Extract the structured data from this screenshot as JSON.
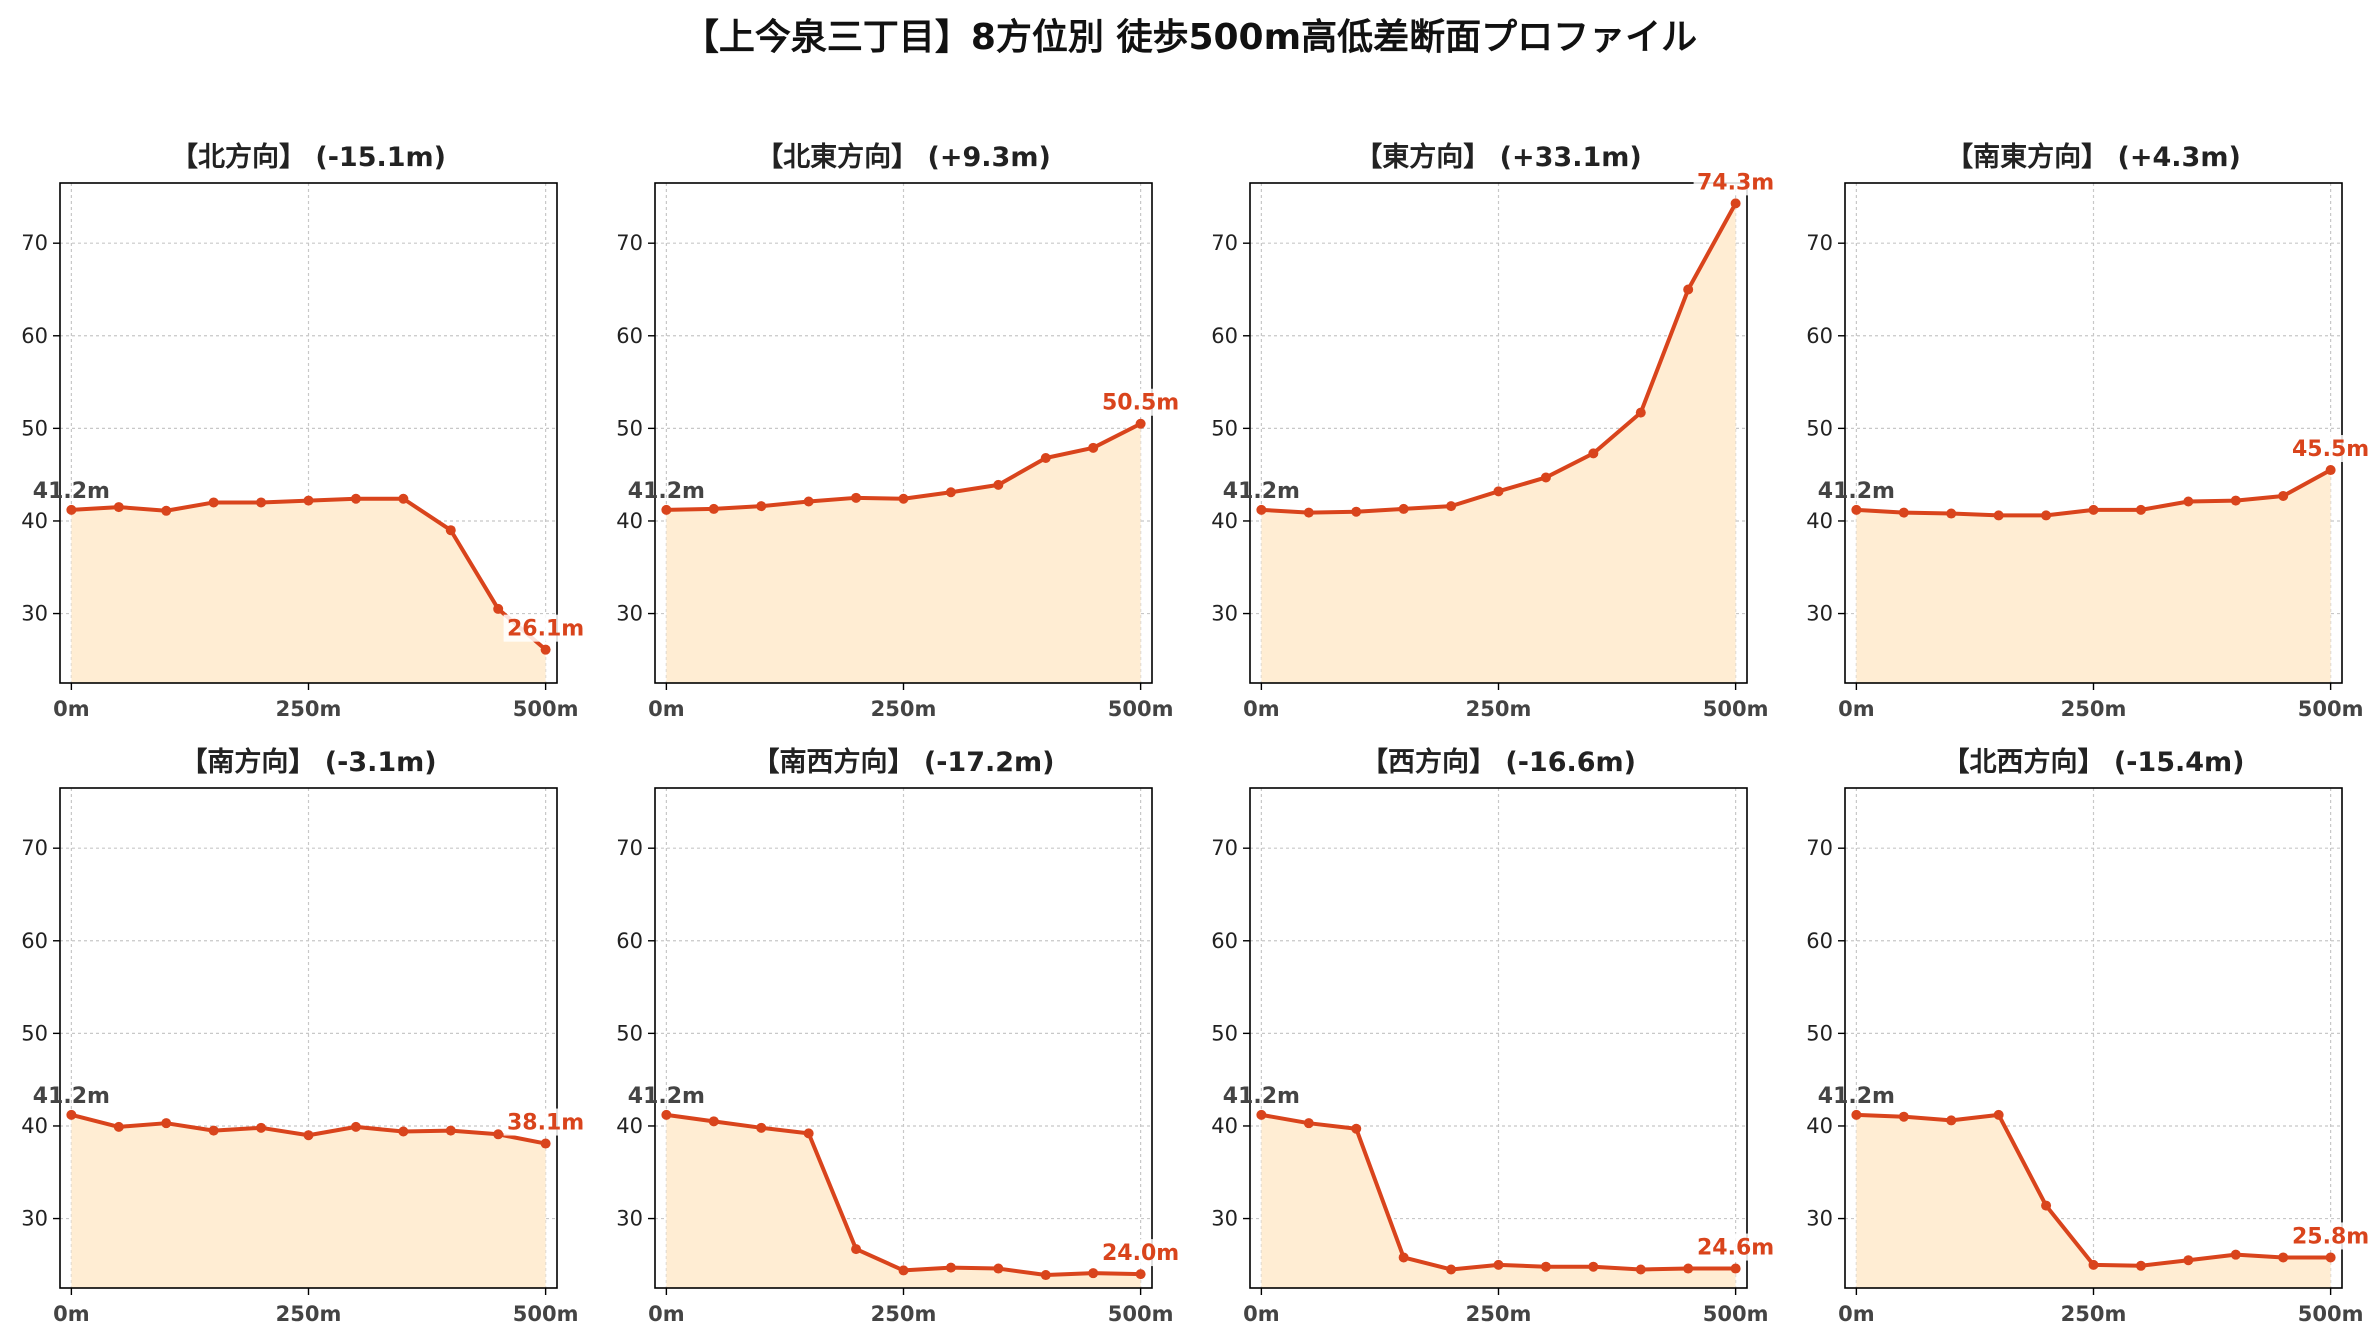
{
  "title": "【上今泉三丁目】8方位別 徒歩500m高低差断面プロファイル",
  "colors": {
    "line": "#d9441c",
    "fill": "#ffedd3",
    "grid": "#c8c8c8",
    "axis": "#000000",
    "start_label": "#444444"
  },
  "chart_data": [
    {
      "type": "area",
      "title": "【北方向】 (-15.1m)",
      "x": [
        0,
        50,
        100,
        150,
        200,
        250,
        300,
        350,
        400,
        450,
        500
      ],
      "values": [
        41.2,
        41.5,
        41.1,
        42.0,
        42.0,
        42.2,
        42.4,
        42.4,
        39.0,
        30.5,
        26.1
      ],
      "start_label": "41.2m",
      "end_label": "26.1m",
      "xticks": [
        0,
        250,
        500
      ],
      "xtick_labels": [
        "0m",
        "250m",
        "500m"
      ],
      "yticks": [
        30,
        40,
        50,
        60,
        70
      ],
      "xlim": [
        -12,
        512
      ],
      "ylim": [
        22.5,
        76.5
      ],
      "grid": true
    },
    {
      "type": "area",
      "title": "【北東方向】 (+9.3m)",
      "x": [
        0,
        50,
        100,
        150,
        200,
        250,
        300,
        350,
        400,
        450,
        500
      ],
      "values": [
        41.2,
        41.3,
        41.6,
        42.1,
        42.5,
        42.4,
        43.1,
        43.9,
        46.8,
        47.9,
        50.5
      ],
      "start_label": "41.2m",
      "end_label": "50.5m",
      "xticks": [
        0,
        250,
        500
      ],
      "xtick_labels": [
        "0m",
        "250m",
        "500m"
      ],
      "yticks": [
        30,
        40,
        50,
        60,
        70
      ],
      "xlim": [
        -12,
        512
      ],
      "ylim": [
        22.5,
        76.5
      ],
      "grid": true
    },
    {
      "type": "area",
      "title": "【東方向】 (+33.1m)",
      "x": [
        0,
        50,
        100,
        150,
        200,
        250,
        300,
        350,
        400,
        450,
        500
      ],
      "values": [
        41.2,
        40.9,
        41.0,
        41.3,
        41.6,
        43.2,
        44.7,
        47.3,
        51.7,
        65.0,
        74.3
      ],
      "start_label": "41.2m",
      "end_label": "74.3m",
      "xticks": [
        0,
        250,
        500
      ],
      "xtick_labels": [
        "0m",
        "250m",
        "500m"
      ],
      "yticks": [
        30,
        40,
        50,
        60,
        70
      ],
      "xlim": [
        -12,
        512
      ],
      "ylim": [
        22.5,
        76.5
      ],
      "grid": true
    },
    {
      "type": "area",
      "title": "【南東方向】 (+4.3m)",
      "x": [
        0,
        50,
        100,
        150,
        200,
        250,
        300,
        350,
        400,
        450,
        500
      ],
      "values": [
        41.2,
        40.9,
        40.8,
        40.6,
        40.6,
        41.2,
        41.2,
        42.1,
        42.2,
        42.7,
        45.5
      ],
      "start_label": "41.2m",
      "end_label": "45.5m",
      "xticks": [
        0,
        250,
        500
      ],
      "xtick_labels": [
        "0m",
        "250m",
        "500m"
      ],
      "yticks": [
        30,
        40,
        50,
        60,
        70
      ],
      "xlim": [
        -12,
        512
      ],
      "ylim": [
        22.5,
        76.5
      ],
      "grid": true
    },
    {
      "type": "area",
      "title": "【南方向】 (-3.1m)",
      "x": [
        0,
        50,
        100,
        150,
        200,
        250,
        300,
        350,
        400,
        450,
        500
      ],
      "values": [
        41.2,
        39.9,
        40.3,
        39.5,
        39.8,
        39.0,
        39.9,
        39.4,
        39.5,
        39.1,
        38.1
      ],
      "start_label": "41.2m",
      "end_label": "38.1m",
      "xticks": [
        0,
        250,
        500
      ],
      "xtick_labels": [
        "0m",
        "250m",
        "500m"
      ],
      "yticks": [
        30,
        40,
        50,
        60,
        70
      ],
      "xlim": [
        -12,
        512
      ],
      "ylim": [
        22.5,
        76.5
      ],
      "grid": true
    },
    {
      "type": "area",
      "title": "【南西方向】 (-17.2m)",
      "x": [
        0,
        50,
        100,
        150,
        200,
        250,
        300,
        350,
        400,
        450,
        500
      ],
      "values": [
        41.2,
        40.5,
        39.8,
        39.2,
        26.7,
        24.4,
        24.7,
        24.6,
        23.9,
        24.1,
        24.0
      ],
      "start_label": "41.2m",
      "end_label": "24.0m",
      "xticks": [
        0,
        250,
        500
      ],
      "xtick_labels": [
        "0m",
        "250m",
        "500m"
      ],
      "yticks": [
        30,
        40,
        50,
        60,
        70
      ],
      "xlim": [
        -12,
        512
      ],
      "ylim": [
        22.5,
        76.5
      ],
      "grid": true
    },
    {
      "type": "area",
      "title": "【西方向】 (-16.6m)",
      "x": [
        0,
        50,
        100,
        150,
        200,
        250,
        300,
        350,
        400,
        450,
        500
      ],
      "values": [
        41.2,
        40.3,
        39.7,
        25.8,
        24.5,
        25.0,
        24.8,
        24.8,
        24.5,
        24.6,
        24.6
      ],
      "start_label": "41.2m",
      "end_label": "24.6m",
      "xticks": [
        0,
        250,
        500
      ],
      "xtick_labels": [
        "0m",
        "250m",
        "500m"
      ],
      "yticks": [
        30,
        40,
        50,
        60,
        70
      ],
      "xlim": [
        -12,
        512
      ],
      "ylim": [
        22.5,
        76.5
      ],
      "grid": true
    },
    {
      "type": "area",
      "title": "【北西方向】 (-15.4m)",
      "x": [
        0,
        50,
        100,
        150,
        200,
        250,
        300,
        350,
        400,
        450,
        500
      ],
      "values": [
        41.2,
        41.0,
        40.6,
        41.2,
        31.4,
        25.0,
        24.9,
        25.5,
        26.1,
        25.8,
        25.8
      ],
      "start_label": "41.2m",
      "end_label": "25.8m",
      "xticks": [
        0,
        250,
        500
      ],
      "xtick_labels": [
        "0m",
        "250m",
        "500m"
      ],
      "yticks": [
        30,
        40,
        50,
        60,
        70
      ],
      "xlim": [
        -12,
        512
      ],
      "ylim": [
        22.5,
        76.5
      ],
      "grid": true
    }
  ]
}
